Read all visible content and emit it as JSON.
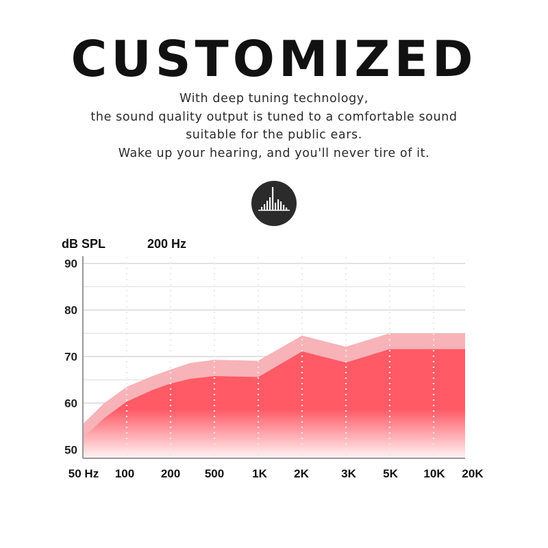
{
  "header": {
    "title": "CUSTOMIZED",
    "lines": [
      "With deep tuning technology,",
      "the sound quality output is tuned to a comfortable sound",
      "suitable for the public ears.",
      "Wake up your hearing, and you'll never tire of it."
    ]
  },
  "badge": {
    "icon": "equalizer-bars-icon"
  },
  "colors": {
    "upper_band": "#f7b3b8",
    "lower_fill": "#ff5a66",
    "grid": "#d4d4d4",
    "axis": "#999999"
  },
  "chart_data": {
    "type": "area",
    "ylabel": "dB SPL",
    "annotation": "200 Hz",
    "ylim": [
      48,
      92
    ],
    "yticks": [
      50,
      60,
      70,
      80,
      90
    ],
    "xticks": [
      "50 Hz",
      "100",
      "200",
      "500",
      "1K",
      "2K",
      "3K",
      "5K",
      "10K",
      "20K"
    ],
    "xlim": [
      50,
      20000
    ],
    "grid": true,
    "series": [
      {
        "x": [
          50,
          70,
          100,
          150,
          200,
          300,
          500,
          1000,
          2000,
          3000,
          5000,
          10000,
          20000
        ],
        "y": [
          55.5,
          60,
          63.5,
          65.8,
          67.2,
          68.6,
          69.3,
          69.1,
          74.5,
          72.1,
          75,
          75,
          75
        ]
      },
      {
        "x": [
          50,
          70,
          100,
          150,
          200,
          300,
          500,
          1000,
          2000,
          3000,
          5000,
          10000,
          20000
        ],
        "y": [
          52.5,
          56.8,
          60.3,
          62.8,
          64.2,
          65.2,
          65.8,
          65.6,
          71.1,
          68.7,
          71.6,
          71.6,
          71.6
        ]
      }
    ]
  }
}
